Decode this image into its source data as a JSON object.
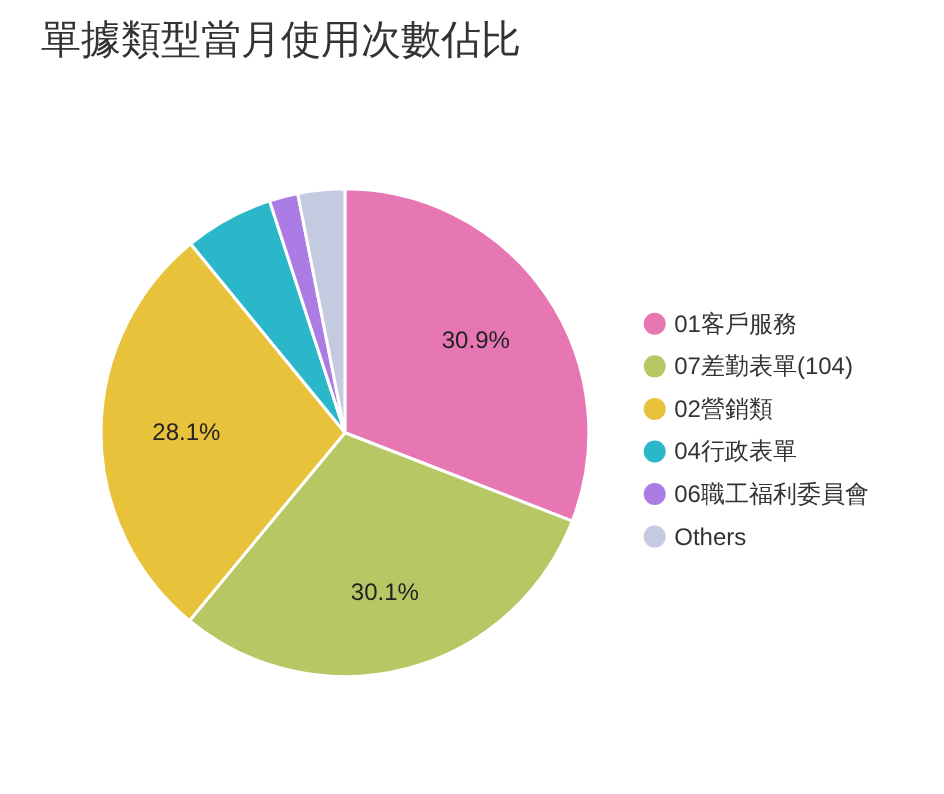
{
  "chart_data": {
    "type": "pie",
    "title": "單據類型當月使用次數佔比",
    "categories": [
      "01客戶服務",
      "07差勤表單(104)",
      "02營銷類",
      "04行政表單",
      "06職工福利委員會",
      "Others"
    ],
    "values": [
      30.9,
      30.1,
      28.1,
      5.9,
      1.9,
      3.1
    ],
    "colors": [
      "#e677b2",
      "#b6c764",
      "#e9c23b",
      "#2bb7ca",
      "#ab7ce3",
      "#c4cbe0"
    ],
    "value_labels": [
      "30.9%",
      "30.1%",
      "28.1%",
      null,
      null,
      null
    ],
    "legend": "right"
  }
}
